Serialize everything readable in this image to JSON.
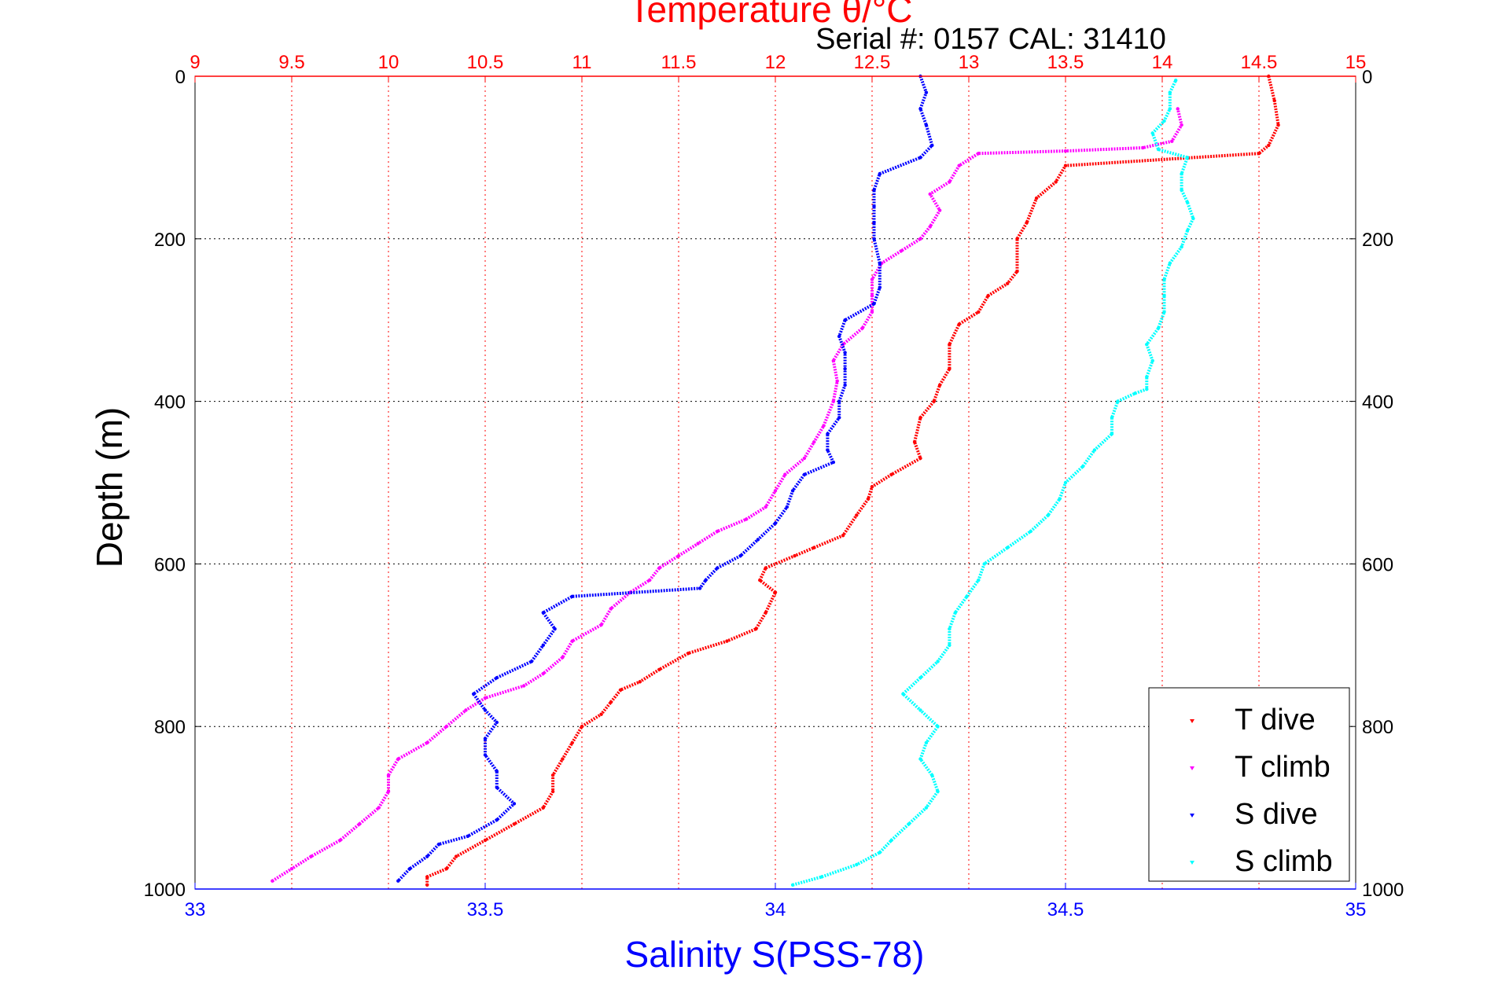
{
  "chart_data": {
    "type": "scatter",
    "title": "Temperature θ/°C",
    "subtitle": "Serial #: 0157  CAL: 31410",
    "xlabel": "Salinity S(PSS-78)",
    "x2label": "Temperature θ/°C",
    "ylabel": "Depth (m)",
    "xlim": [
      33,
      35
    ],
    "x2lim": [
      9,
      15
    ],
    "ylim": [
      0,
      1000
    ],
    "y_reversed": true,
    "grid": true,
    "legend_position": "bottom-right",
    "xticks": [
      "33",
      "33.5",
      "34",
      "34.5",
      "35"
    ],
    "x2ticks": [
      "9",
      "9.5",
      "10",
      "10.5",
      "11",
      "11.5",
      "12",
      "12.5",
      "13",
      "13.5",
      "14",
      "14.5",
      "15"
    ],
    "yticks": [
      "0",
      "200",
      "400",
      "600",
      "800",
      "1000"
    ],
    "colors": {
      "temperature_axis": "#ff0000",
      "salinity_axis": "#0000ff",
      "t_dive": "#ff0000",
      "t_climb": "#ff00ff",
      "s_dive": "#0000ff",
      "s_climb": "#00ffff"
    },
    "series": [
      {
        "name": "T dive",
        "axis": "temperature",
        "points": [
          [
            14.55,
            0
          ],
          [
            14.58,
            30
          ],
          [
            14.6,
            60
          ],
          [
            14.55,
            85
          ],
          [
            14.5,
            95
          ],
          [
            13.5,
            110
          ],
          [
            13.45,
            130
          ],
          [
            13.35,
            150
          ],
          [
            13.3,
            180
          ],
          [
            13.25,
            200
          ],
          [
            13.25,
            240
          ],
          [
            13.2,
            255
          ],
          [
            13.1,
            270
          ],
          [
            13.05,
            290
          ],
          [
            12.95,
            305
          ],
          [
            12.9,
            330
          ],
          [
            12.9,
            360
          ],
          [
            12.85,
            380
          ],
          [
            12.82,
            400
          ],
          [
            12.75,
            420
          ],
          [
            12.72,
            450
          ],
          [
            12.75,
            470
          ],
          [
            12.6,
            490
          ],
          [
            12.5,
            505
          ],
          [
            12.48,
            520
          ],
          [
            12.42,
            540
          ],
          [
            12.35,
            565
          ],
          [
            12.2,
            580
          ],
          [
            12.1,
            590
          ],
          [
            11.95,
            605
          ],
          [
            11.92,
            620
          ],
          [
            12.0,
            635
          ],
          [
            11.95,
            660
          ],
          [
            11.9,
            680
          ],
          [
            11.75,
            695
          ],
          [
            11.55,
            710
          ],
          [
            11.4,
            730
          ],
          [
            11.3,
            745
          ],
          [
            11.2,
            755
          ],
          [
            11.15,
            770
          ],
          [
            11.1,
            785
          ],
          [
            11.0,
            800
          ],
          [
            10.95,
            820
          ],
          [
            10.9,
            840
          ],
          [
            10.85,
            860
          ],
          [
            10.85,
            880
          ],
          [
            10.8,
            900
          ],
          [
            10.65,
            920
          ],
          [
            10.5,
            940
          ],
          [
            10.35,
            960
          ],
          [
            10.3,
            975
          ],
          [
            10.2,
            985
          ],
          [
            10.2,
            995
          ]
        ]
      },
      {
        "name": "T climb",
        "axis": "temperature",
        "points": [
          [
            9.4,
            990
          ],
          [
            9.5,
            975
          ],
          [
            9.6,
            960
          ],
          [
            9.75,
            940
          ],
          [
            9.85,
            920
          ],
          [
            9.95,
            900
          ],
          [
            10.0,
            880
          ],
          [
            10.0,
            860
          ],
          [
            10.05,
            840
          ],
          [
            10.2,
            820
          ],
          [
            10.3,
            800
          ],
          [
            10.4,
            780
          ],
          [
            10.5,
            765
          ],
          [
            10.7,
            750
          ],
          [
            10.8,
            735
          ],
          [
            10.9,
            715
          ],
          [
            10.95,
            695
          ],
          [
            11.1,
            675
          ],
          [
            11.15,
            655
          ],
          [
            11.25,
            635
          ],
          [
            11.35,
            620
          ],
          [
            11.4,
            605
          ],
          [
            11.5,
            590
          ],
          [
            11.6,
            575
          ],
          [
            11.7,
            560
          ],
          [
            11.85,
            545
          ],
          [
            11.95,
            530
          ],
          [
            12.0,
            510
          ],
          [
            12.05,
            490
          ],
          [
            12.15,
            470
          ],
          [
            12.2,
            450
          ],
          [
            12.25,
            430
          ],
          [
            12.3,
            400
          ],
          [
            12.32,
            375
          ],
          [
            12.3,
            350
          ],
          [
            12.35,
            330
          ],
          [
            12.45,
            310
          ],
          [
            12.5,
            290
          ],
          [
            12.5,
            270
          ],
          [
            12.5,
            250
          ],
          [
            12.55,
            230
          ],
          [
            12.65,
            215
          ],
          [
            12.75,
            200
          ],
          [
            12.8,
            185
          ],
          [
            12.85,
            165
          ],
          [
            12.8,
            145
          ],
          [
            12.9,
            130
          ],
          [
            12.95,
            110
          ],
          [
            13.05,
            95
          ],
          [
            13.5,
            92
          ],
          [
            13.9,
            88
          ],
          [
            14.05,
            80
          ],
          [
            14.1,
            60
          ],
          [
            14.08,
            40
          ]
        ]
      },
      {
        "name": "S dive",
        "axis": "salinity",
        "points": [
          [
            34.25,
            0
          ],
          [
            34.26,
            20
          ],
          [
            34.25,
            40
          ],
          [
            34.26,
            60
          ],
          [
            34.27,
            85
          ],
          [
            34.25,
            100
          ],
          [
            34.18,
            120
          ],
          [
            34.17,
            140
          ],
          [
            34.17,
            160
          ],
          [
            34.17,
            180
          ],
          [
            34.17,
            200
          ],
          [
            34.18,
            230
          ],
          [
            34.18,
            260
          ],
          [
            34.17,
            280
          ],
          [
            34.12,
            300
          ],
          [
            34.11,
            320
          ],
          [
            34.12,
            340
          ],
          [
            34.12,
            360
          ],
          [
            34.12,
            380
          ],
          [
            34.11,
            400
          ],
          [
            34.11,
            420
          ],
          [
            34.09,
            440
          ],
          [
            34.09,
            460
          ],
          [
            34.1,
            475
          ],
          [
            34.05,
            490
          ],
          [
            34.03,
            510
          ],
          [
            34.02,
            530
          ],
          [
            34.0,
            550
          ],
          [
            33.97,
            570
          ],
          [
            33.94,
            590
          ],
          [
            33.9,
            605
          ],
          [
            33.88,
            620
          ],
          [
            33.87,
            630
          ],
          [
            33.65,
            640
          ],
          [
            33.6,
            660
          ],
          [
            33.62,
            680
          ],
          [
            33.6,
            700
          ],
          [
            33.58,
            720
          ],
          [
            33.52,
            740
          ],
          [
            33.48,
            760
          ],
          [
            33.5,
            780
          ],
          [
            33.52,
            795
          ],
          [
            33.5,
            815
          ],
          [
            33.5,
            835
          ],
          [
            33.52,
            855
          ],
          [
            33.52,
            875
          ],
          [
            33.55,
            895
          ],
          [
            33.52,
            915
          ],
          [
            33.47,
            935
          ],
          [
            33.42,
            945
          ],
          [
            33.4,
            960
          ],
          [
            33.37,
            975
          ],
          [
            33.35,
            990
          ]
        ]
      },
      {
        "name": "S climb",
        "axis": "salinity",
        "points": [
          [
            34.03,
            995
          ],
          [
            34.08,
            985
          ],
          [
            34.14,
            970
          ],
          [
            34.18,
            955
          ],
          [
            34.2,
            940
          ],
          [
            34.23,
            920
          ],
          [
            34.26,
            900
          ],
          [
            34.28,
            880
          ],
          [
            34.27,
            860
          ],
          [
            34.25,
            840
          ],
          [
            34.26,
            820
          ],
          [
            34.28,
            800
          ],
          [
            34.25,
            780
          ],
          [
            34.22,
            760
          ],
          [
            34.25,
            740
          ],
          [
            34.28,
            720
          ],
          [
            34.3,
            700
          ],
          [
            34.3,
            680
          ],
          [
            34.31,
            660
          ],
          [
            34.33,
            640
          ],
          [
            34.35,
            620
          ],
          [
            34.36,
            600
          ],
          [
            34.4,
            580
          ],
          [
            34.44,
            560
          ],
          [
            34.47,
            540
          ],
          [
            34.49,
            520
          ],
          [
            34.5,
            500
          ],
          [
            34.53,
            480
          ],
          [
            34.55,
            460
          ],
          [
            34.58,
            440
          ],
          [
            34.58,
            420
          ],
          [
            34.59,
            400
          ],
          [
            34.62,
            390
          ],
          [
            34.64,
            385
          ],
          [
            34.64,
            370
          ],
          [
            34.65,
            350
          ],
          [
            34.64,
            330
          ],
          [
            34.66,
            310
          ],
          [
            34.67,
            290
          ],
          [
            34.67,
            270
          ],
          [
            34.67,
            250
          ],
          [
            34.68,
            230
          ],
          [
            34.7,
            210
          ],
          [
            34.71,
            190
          ],
          [
            34.72,
            175
          ],
          [
            34.71,
            155
          ],
          [
            34.7,
            140
          ],
          [
            34.7,
            120
          ],
          [
            34.71,
            100
          ],
          [
            34.66,
            90
          ],
          [
            34.65,
            70
          ],
          [
            34.67,
            55
          ],
          [
            34.68,
            40
          ],
          [
            34.68,
            20
          ],
          [
            34.69,
            5
          ]
        ]
      }
    ]
  }
}
